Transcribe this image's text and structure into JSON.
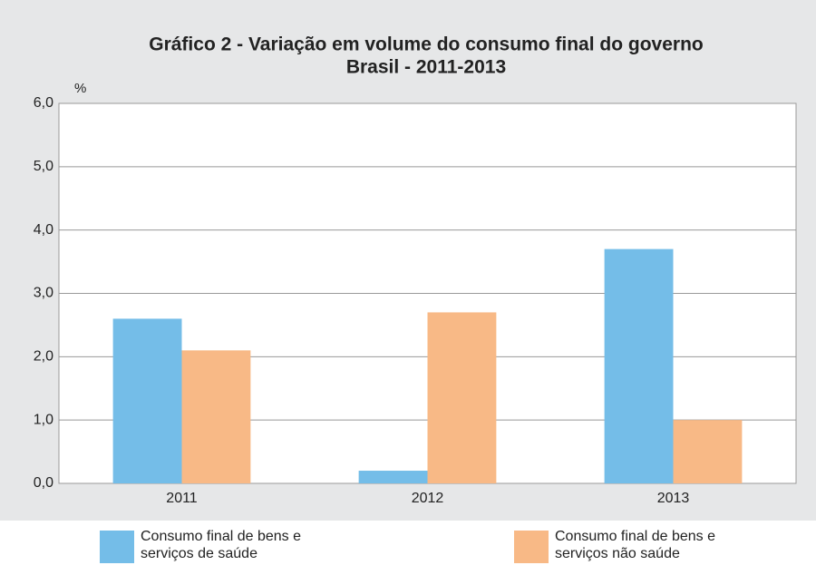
{
  "chart_data": {
    "type": "bar",
    "title": "Gráfico 2 - Variação em volume do consumo final do governo",
    "subtitle": "Brasil - 2011-2013",
    "y_label": "%",
    "categories": [
      "2011",
      "2012",
      "2013"
    ],
    "series": [
      {
        "name": "Consumo final de bens e serviços de saúde",
        "color": "#74bde8",
        "values": [
          2.6,
          0.2,
          3.7
        ]
      },
      {
        "name": "Consumo final de bens e serviços não saúde",
        "color": "#f8b986",
        "values": [
          2.1,
          2.7,
          1.0
        ]
      }
    ],
    "ylim": [
      0,
      6
    ],
    "yticks": [
      {
        "value": 0,
        "label": "0,0"
      },
      {
        "value": 1,
        "label": "1,0"
      },
      {
        "value": 2,
        "label": "2,0"
      },
      {
        "value": 3,
        "label": "3,0"
      },
      {
        "value": 4,
        "label": "4,0"
      },
      {
        "value": 5,
        "label": "5,0"
      },
      {
        "value": 6,
        "label": "6,0"
      }
    ],
    "grid": true
  }
}
